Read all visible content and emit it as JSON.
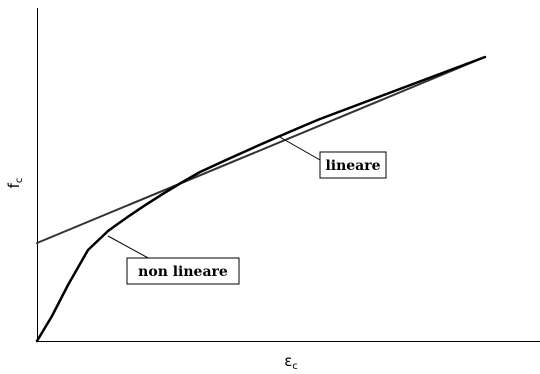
{
  "diagram": {
    "y_axis_label": {
      "symbol": "f",
      "subscript": "c"
    },
    "x_axis_label": {
      "symbol": "ε",
      "subscript": "c"
    },
    "lines": [
      {
        "name": "lineare",
        "style": "straight",
        "color": "#333333"
      },
      {
        "name": "non lineare",
        "style": "curved",
        "color": "#000000"
      }
    ],
    "labels": {
      "linear": "lineare",
      "nonlinear": "non lineare"
    }
  }
}
